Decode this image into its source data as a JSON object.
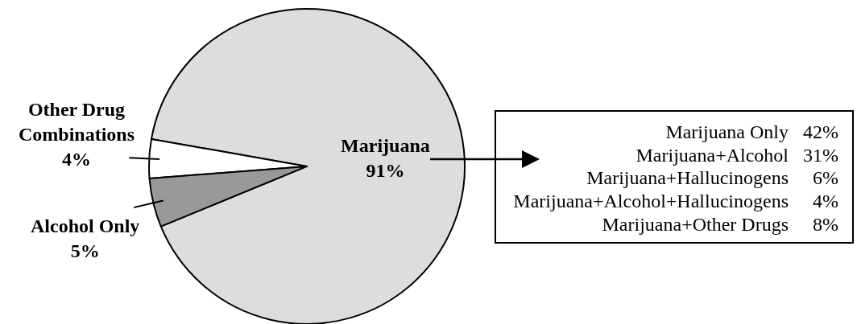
{
  "chart_data": [
    {
      "type": "pie",
      "categories": [
        "Marijuana",
        "Other Drug Combinations",
        "Alcohol Only"
      ],
      "values": [
        91,
        4,
        5
      ],
      "value_labels": [
        "91%",
        "4%",
        "5%"
      ],
      "colors": [
        "#dddddd",
        "#ffffff",
        "#999999"
      ]
    },
    {
      "type": "other",
      "categories": [
        "Marijuana Only",
        "Marijuana+Alcohol",
        "Marijuana+Hallucinogens",
        "Marijuana+Alcohol+Hallucinogens",
        "Marijuana+Other Drugs"
      ],
      "value_labels": [
        "42%",
        "31%",
        "6%",
        "4%",
        "8%"
      ]
    }
  ]
}
